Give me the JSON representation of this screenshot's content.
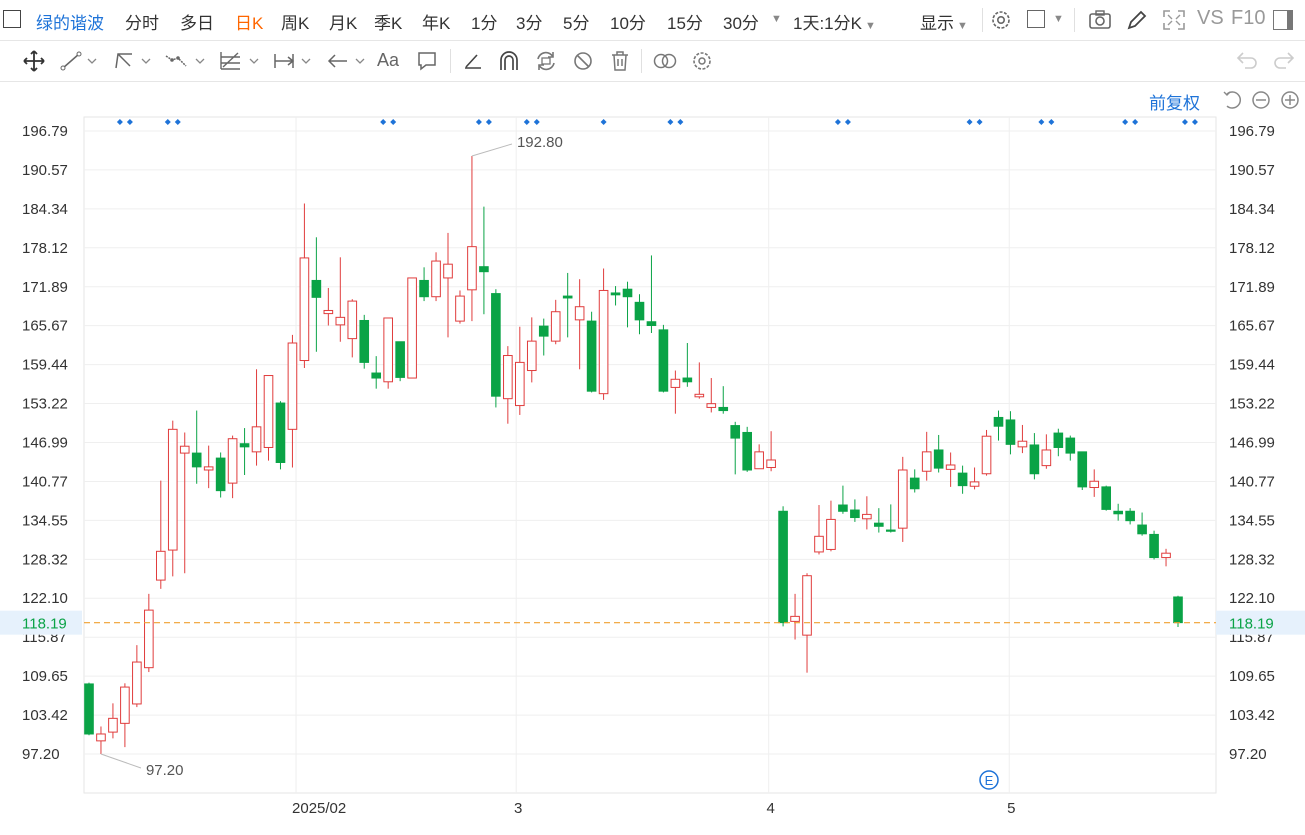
{
  "title_bar": {
    "stock_name": "绿的谐波"
  },
  "periods": [
    "分时",
    "多日",
    "日K",
    "周K",
    "月K",
    "季K",
    "年K",
    "1分",
    "3分",
    "5分",
    "10分",
    "15分",
    "30分"
  ],
  "active_period": "日K",
  "range_select": "1天:1分K",
  "display_label": "显示",
  "vs_label": "VS",
  "f10_label": "F10",
  "adjust_label": "前复权",
  "colors": {
    "up": "#e03c3c",
    "down": "#0aa346",
    "accent": "#1e73d8",
    "active": "#ff6600",
    "last_price_line": "#f0a030"
  },
  "icons_top": [
    "gear-icon",
    "square-icon",
    "camera-icon",
    "pencil-icon",
    "fullscreen-icon",
    "window-icon"
  ],
  "icons_draw": [
    "move-icon",
    "line-icon",
    "ray-icon",
    "polyline-icon",
    "fib-icon",
    "measure-icon",
    "arrow-icon",
    "text-icon",
    "comment-icon",
    "ruler-icon",
    "magnet-icon",
    "sync-icon",
    "hide-icon",
    "trash-icon",
    "link-icon",
    "settings-icon",
    "undo-icon",
    "redo-icon"
  ],
  "chart_data": {
    "type": "candlestick",
    "y_ticks": [
      "196.79",
      "190.57",
      "184.34",
      "178.12",
      "171.89",
      "165.67",
      "159.44",
      "153.22",
      "146.99",
      "140.77",
      "134.55",
      "128.32",
      "122.10",
      "115.87",
      "109.65",
      "103.42",
      "97.20"
    ],
    "ylim": [
      97.2,
      196.79
    ],
    "x_labels": [
      "2025/02",
      "3",
      "4",
      "5"
    ],
    "last_price": "118.19",
    "max_label": "192.80",
    "min_label": "97.20",
    "event_marker": "E",
    "candles": [
      {
        "o": 108.4,
        "c": 100.4,
        "h": 108.6,
        "l": 100.2
      },
      {
        "o": 99.3,
        "c": 100.4,
        "h": 101.6,
        "l": 97.2
      },
      {
        "o": 100.7,
        "c": 102.9,
        "h": 105.3,
        "l": 99.7
      },
      {
        "o": 102.1,
        "c": 107.9,
        "h": 108.5,
        "l": 98.3
      },
      {
        "o": 105.2,
        "c": 111.9,
        "h": 114.6,
        "l": 104.7
      },
      {
        "o": 111.0,
        "c": 120.2,
        "h": 122.8,
        "l": 110.3
      },
      {
        "o": 125.0,
        "c": 129.6,
        "h": 140.9,
        "l": 123.6
      },
      {
        "o": 129.8,
        "c": 149.1,
        "h": 150.5,
        "l": 125.6
      },
      {
        "o": 145.3,
        "c": 146.4,
        "h": 148.6,
        "l": 126.1
      },
      {
        "o": 145.3,
        "c": 143.1,
        "h": 152.1,
        "l": 140.4
      },
      {
        "o": 142.6,
        "c": 143.1,
        "h": 146.5,
        "l": 139.7
      },
      {
        "o": 144.5,
        "c": 139.3,
        "h": 145.4,
        "l": 138.2
      },
      {
        "o": 140.5,
        "c": 147.6,
        "h": 148.1,
        "l": 138.1
      },
      {
        "o": 146.8,
        "c": 146.3,
        "h": 149.3,
        "l": 141.8
      },
      {
        "o": 145.5,
        "c": 149.5,
        "h": 158.7,
        "l": 143.3
      },
      {
        "o": 146.2,
        "c": 157.7,
        "h": 157.7,
        "l": 144.1
      },
      {
        "o": 153.3,
        "c": 143.8,
        "h": 153.6,
        "l": 142.7
      },
      {
        "o": 149.1,
        "c": 162.9,
        "h": 164.2,
        "l": 143.0
      },
      {
        "o": 160.1,
        "c": 176.5,
        "h": 185.2,
        "l": 158.9
      },
      {
        "o": 172.9,
        "c": 170.2,
        "h": 179.8,
        "l": 161.5
      },
      {
        "o": 167.6,
        "c": 168.1,
        "h": 171.7,
        "l": 165.7
      },
      {
        "o": 165.8,
        "c": 167.0,
        "h": 176.6,
        "l": 163.1
      },
      {
        "o": 163.6,
        "c": 169.6,
        "h": 169.9,
        "l": 160.6
      },
      {
        "o": 166.5,
        "c": 159.8,
        "h": 167.4,
        "l": 158.8
      },
      {
        "o": 158.1,
        "c": 157.3,
        "h": 160.8,
        "l": 155.6
      },
      {
        "o": 156.7,
        "c": 166.9,
        "h": 166.9,
        "l": 155.6
      },
      {
        "o": 163.1,
        "c": 157.4,
        "h": 163.1,
        "l": 156.8
      },
      {
        "o": 157.3,
        "c": 173.3,
        "h": 173.3,
        "l": 157.3
      },
      {
        "o": 172.9,
        "c": 170.3,
        "h": 175.0,
        "l": 169.6
      },
      {
        "o": 170.3,
        "c": 176.0,
        "h": 177.4,
        "l": 169.6
      },
      {
        "o": 173.3,
        "c": 175.5,
        "h": 180.5,
        "l": 163.8
      },
      {
        "o": 166.4,
        "c": 170.4,
        "h": 171.3,
        "l": 166.0
      },
      {
        "o": 171.4,
        "c": 178.3,
        "h": 192.8,
        "l": 166.4
      },
      {
        "o": 175.1,
        "c": 174.3,
        "h": 184.7,
        "l": 167.5
      },
      {
        "o": 170.8,
        "c": 154.4,
        "h": 171.5,
        "l": 152.6
      },
      {
        "o": 154.0,
        "c": 160.9,
        "h": 162.4,
        "l": 150.0
      },
      {
        "o": 152.9,
        "c": 159.8,
        "h": 165.5,
        "l": 151.4
      },
      {
        "o": 158.5,
        "c": 163.2,
        "h": 167.0,
        "l": 156.6
      },
      {
        "o": 165.6,
        "c": 164.0,
        "h": 166.8,
        "l": 160.9
      },
      {
        "o": 163.2,
        "c": 167.9,
        "h": 169.8,
        "l": 162.7
      },
      {
        "o": 170.4,
        "c": 170.1,
        "h": 174.1,
        "l": 163.8
      },
      {
        "o": 166.6,
        "c": 168.7,
        "h": 173.1,
        "l": 158.7
      },
      {
        "o": 166.4,
        "c": 155.2,
        "h": 167.9,
        "l": 155.0
      },
      {
        "o": 154.8,
        "c": 171.3,
        "h": 174.8,
        "l": 153.8
      },
      {
        "o": 170.9,
        "c": 170.6,
        "h": 172.0,
        "l": 168.9
      },
      {
        "o": 171.5,
        "c": 170.3,
        "h": 172.7,
        "l": 165.4
      },
      {
        "o": 169.4,
        "c": 166.6,
        "h": 170.7,
        "l": 164.3
      },
      {
        "o": 166.3,
        "c": 165.7,
        "h": 176.9,
        "l": 164.5
      },
      {
        "o": 165.0,
        "c": 155.2,
        "h": 165.8,
        "l": 155.0
      },
      {
        "o": 155.8,
        "c": 157.1,
        "h": 158.5,
        "l": 151.6
      },
      {
        "o": 157.3,
        "c": 156.7,
        "h": 162.9,
        "l": 155.9
      },
      {
        "o": 154.3,
        "c": 154.7,
        "h": 159.8,
        "l": 154.0
      },
      {
        "o": 152.6,
        "c": 153.2,
        "h": 157.3,
        "l": 151.8
      },
      {
        "o": 152.6,
        "c": 152.1,
        "h": 156.0,
        "l": 151.6
      },
      {
        "o": 149.7,
        "c": 147.7,
        "h": 150.3,
        "l": 141.9
      },
      {
        "o": 148.6,
        "c": 142.6,
        "h": 149.5,
        "l": 142.3
      },
      {
        "o": 142.8,
        "c": 145.5,
        "h": 146.7,
        "l": 142.8
      },
      {
        "o": 143.0,
        "c": 144.2,
        "h": 148.8,
        "l": 142.4
      },
      {
        "o": 136.0,
        "c": 118.2,
        "h": 136.8,
        "l": 117.6
      },
      {
        "o": 118.4,
        "c": 119.2,
        "h": 122.8,
        "l": 115.5
      },
      {
        "o": 116.2,
        "c": 125.7,
        "h": 126.1,
        "l": 110.2
      },
      {
        "o": 129.5,
        "c": 132.0,
        "h": 137.0,
        "l": 129.1
      },
      {
        "o": 129.9,
        "c": 134.7,
        "h": 137.7,
        "l": 129.6
      },
      {
        "o": 137.0,
        "c": 136.0,
        "h": 140.1,
        "l": 135.6
      },
      {
        "o": 136.2,
        "c": 135.0,
        "h": 137.9,
        "l": 134.3
      },
      {
        "o": 134.8,
        "c": 135.5,
        "h": 138.4,
        "l": 133.1
      },
      {
        "o": 134.1,
        "c": 133.6,
        "h": 136.5,
        "l": 132.6
      },
      {
        "o": 133.0,
        "c": 132.9,
        "h": 137.1,
        "l": 132.6
      },
      {
        "o": 133.3,
        "c": 142.6,
        "h": 144.7,
        "l": 131.1
      },
      {
        "o": 141.3,
        "c": 139.6,
        "h": 142.7,
        "l": 139.0
      },
      {
        "o": 142.4,
        "c": 145.5,
        "h": 148.7,
        "l": 140.9
      },
      {
        "o": 145.8,
        "c": 142.9,
        "h": 148.2,
        "l": 142.2
      },
      {
        "o": 142.7,
        "c": 143.4,
        "h": 145.4,
        "l": 139.9
      },
      {
        "o": 142.1,
        "c": 140.1,
        "h": 143.3,
        "l": 138.8
      },
      {
        "o": 140.0,
        "c": 140.7,
        "h": 143.0,
        "l": 139.5
      },
      {
        "o": 142.0,
        "c": 148.0,
        "h": 149.0,
        "l": 141.7
      },
      {
        "o": 151.0,
        "c": 149.6,
        "h": 152.1,
        "l": 147.3
      },
      {
        "o": 150.6,
        "c": 146.7,
        "h": 152.0,
        "l": 145.1
      },
      {
        "o": 146.3,
        "c": 147.2,
        "h": 149.8,
        "l": 145.3
      },
      {
        "o": 146.6,
        "c": 142.0,
        "h": 148.5,
        "l": 141.1
      },
      {
        "o": 143.3,
        "c": 145.8,
        "h": 148.3,
        "l": 142.8
      },
      {
        "o": 148.5,
        "c": 146.2,
        "h": 149.2,
        "l": 144.8
      },
      {
        "o": 147.7,
        "c": 145.3,
        "h": 148.1,
        "l": 144.1
      },
      {
        "o": 145.5,
        "c": 139.9,
        "h": 145.5,
        "l": 139.4
      },
      {
        "o": 139.8,
        "c": 140.8,
        "h": 142.7,
        "l": 138.3
      },
      {
        "o": 139.9,
        "c": 136.3,
        "h": 140.1,
        "l": 136.1
      },
      {
        "o": 136.0,
        "c": 135.6,
        "h": 137.2,
        "l": 134.5
      },
      {
        "o": 136.0,
        "c": 134.5,
        "h": 136.5,
        "l": 133.9
      },
      {
        "o": 133.8,
        "c": 132.4,
        "h": 135.8,
        "l": 132.1
      },
      {
        "o": 132.3,
        "c": 128.6,
        "h": 132.9,
        "l": 128.3
      },
      {
        "o": 128.6,
        "c": 129.3,
        "h": 130.0,
        "l": 127.2
      },
      {
        "o": 122.3,
        "c": 118.2,
        "h": 122.5,
        "l": 117.5
      }
    ]
  }
}
